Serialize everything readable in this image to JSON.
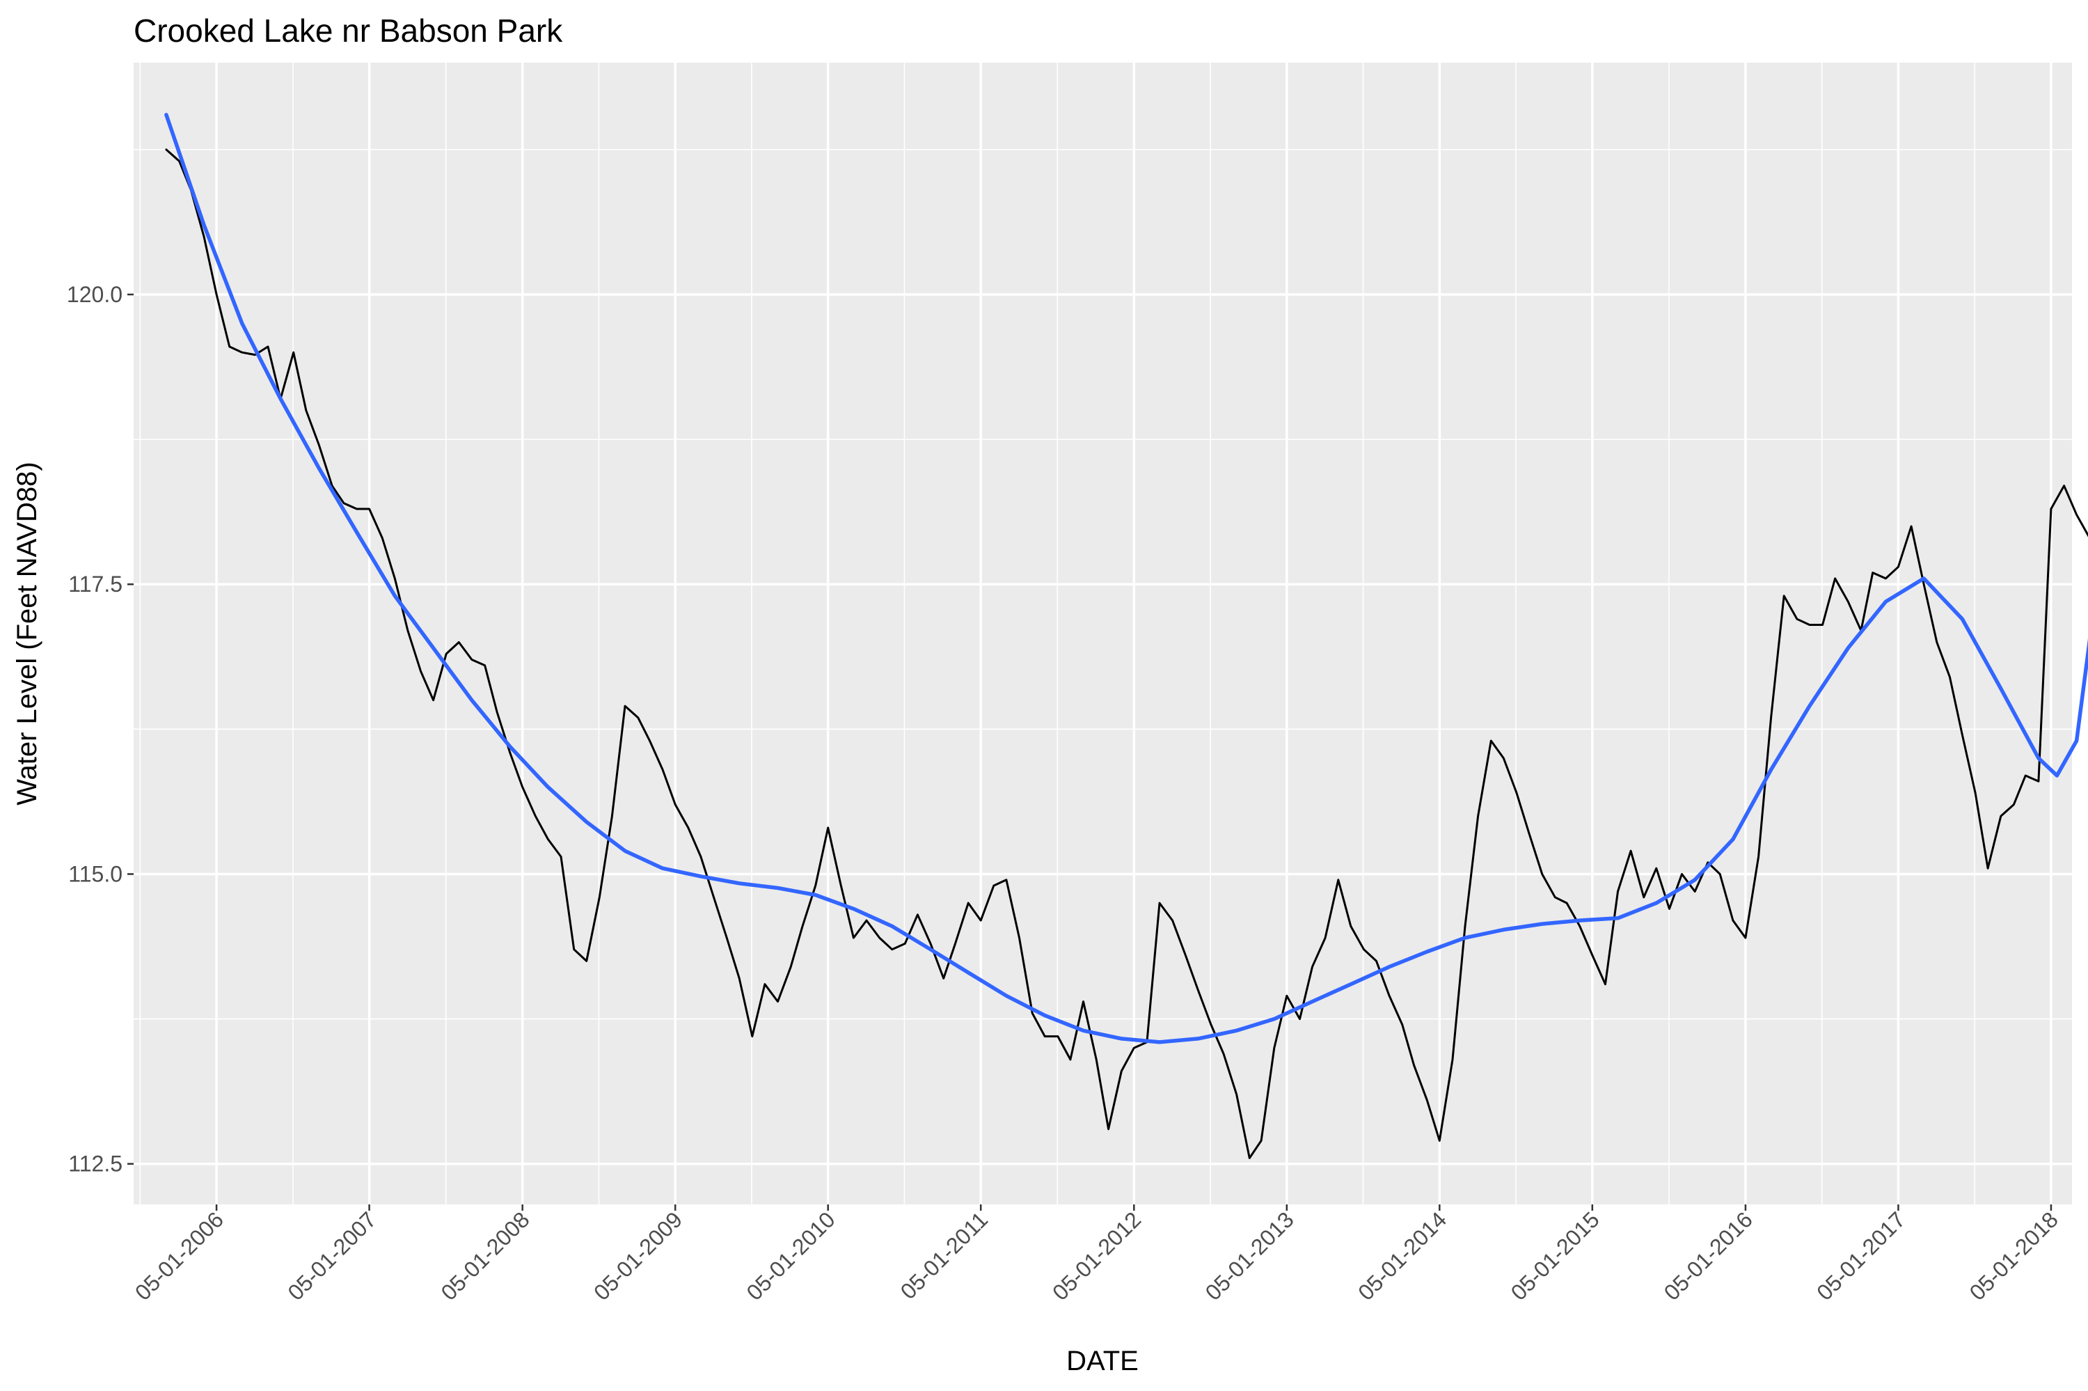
{
  "chart_data": {
    "type": "line",
    "title": "Crooked Lake nr Babson Park",
    "xlabel": "DATE",
    "ylabel": "Water Level (Feet NAVD88)",
    "x_tick_labels": [
      "05-01-2006",
      "05-01-2007",
      "05-01-2008",
      "05-01-2009",
      "05-01-2010",
      "05-01-2011",
      "05-01-2012",
      "05-01-2013",
      "05-01-2014",
      "05-01-2015",
      "05-01-2016",
      "05-01-2017",
      "05-01-2018"
    ],
    "x_ticks": [
      "2006-05-01",
      "2007-05-01",
      "2008-05-01",
      "2009-05-01",
      "2010-05-01",
      "2011-05-01",
      "2012-05-01",
      "2013-05-01",
      "2014-05-01",
      "2015-05-01",
      "2016-05-01",
      "2017-05-01",
      "2018-05-01"
    ],
    "y_tick_labels": [
      "112.5",
      "115.0",
      "117.5",
      "120.0"
    ],
    "y_ticks": [
      112.5,
      115.0,
      117.5,
      120.0
    ],
    "xlim": [
      "2005-10-15",
      "2018-06-20"
    ],
    "ylim": [
      112.15,
      122.0
    ],
    "grid": true,
    "background": "#ebebeb",
    "grid_color": "#ffffff",
    "series": [
      {
        "style": "observed",
        "color": "#000000",
        "points": [
          [
            "2006-01-01",
            121.25
          ],
          [
            "2006-02-01",
            121.15
          ],
          [
            "2006-03-01",
            120.9
          ],
          [
            "2006-04-01",
            120.5
          ],
          [
            "2006-05-01",
            120.0
          ],
          [
            "2006-06-01",
            119.55
          ],
          [
            "2006-07-01",
            119.5
          ],
          [
            "2006-08-01",
            119.48
          ],
          [
            "2006-09-01",
            119.55
          ],
          [
            "2006-10-01",
            119.1
          ],
          [
            "2006-11-01",
            119.5
          ],
          [
            "2006-12-01",
            119.0
          ],
          [
            "2007-01-01",
            118.7
          ],
          [
            "2007-02-01",
            118.35
          ],
          [
            "2007-03-01",
            118.2
          ],
          [
            "2007-04-01",
            118.15
          ],
          [
            "2007-05-01",
            118.15
          ],
          [
            "2007-06-01",
            117.9
          ],
          [
            "2007-07-01",
            117.55
          ],
          [
            "2007-08-01",
            117.1
          ],
          [
            "2007-09-01",
            116.75
          ],
          [
            "2007-10-01",
            116.5
          ],
          [
            "2007-11-01",
            116.9
          ],
          [
            "2007-12-01",
            117.0
          ],
          [
            "2008-01-01",
            116.85
          ],
          [
            "2008-02-01",
            116.8
          ],
          [
            "2008-03-01",
            116.4
          ],
          [
            "2008-04-01",
            116.05
          ],
          [
            "2008-05-01",
            115.75
          ],
          [
            "2008-06-01",
            115.5
          ],
          [
            "2008-07-01",
            115.3
          ],
          [
            "2008-08-01",
            115.15
          ],
          [
            "2008-09-01",
            114.35
          ],
          [
            "2008-10-01",
            114.25
          ],
          [
            "2008-11-01",
            114.8
          ],
          [
            "2008-12-01",
            115.5
          ],
          [
            "2009-01-01",
            116.45
          ],
          [
            "2009-02-01",
            116.35
          ],
          [
            "2009-03-01",
            116.15
          ],
          [
            "2009-04-01",
            115.9
          ],
          [
            "2009-05-01",
            115.6
          ],
          [
            "2009-06-01",
            115.4
          ],
          [
            "2009-07-01",
            115.15
          ],
          [
            "2009-08-01",
            114.8
          ],
          [
            "2009-09-01",
            114.45
          ],
          [
            "2009-10-01",
            114.1
          ],
          [
            "2009-11-01",
            113.6
          ],
          [
            "2009-12-01",
            114.05
          ],
          [
            "2010-01-01",
            113.9
          ],
          [
            "2010-02-01",
            114.2
          ],
          [
            "2010-03-01",
            114.55
          ],
          [
            "2010-04-01",
            114.9
          ],
          [
            "2010-05-01",
            115.4
          ],
          [
            "2010-06-01",
            114.9
          ],
          [
            "2010-07-01",
            114.45
          ],
          [
            "2010-08-01",
            114.6
          ],
          [
            "2010-09-01",
            114.45
          ],
          [
            "2010-10-01",
            114.35
          ],
          [
            "2010-11-01",
            114.4
          ],
          [
            "2010-12-01",
            114.65
          ],
          [
            "2011-01-01",
            114.4
          ],
          [
            "2011-02-01",
            114.1
          ],
          [
            "2011-03-01",
            114.4
          ],
          [
            "2011-04-01",
            114.75
          ],
          [
            "2011-05-01",
            114.6
          ],
          [
            "2011-06-01",
            114.9
          ],
          [
            "2011-07-01",
            114.95
          ],
          [
            "2011-08-01",
            114.45
          ],
          [
            "2011-09-01",
            113.8
          ],
          [
            "2011-10-01",
            113.6
          ],
          [
            "2011-11-01",
            113.6
          ],
          [
            "2011-12-01",
            113.4
          ],
          [
            "2012-01-01",
            113.9
          ],
          [
            "2012-02-01",
            113.4
          ],
          [
            "2012-03-01",
            112.8
          ],
          [
            "2012-04-01",
            113.3
          ],
          [
            "2012-05-01",
            113.5
          ],
          [
            "2012-06-01",
            113.55
          ],
          [
            "2012-07-01",
            114.75
          ],
          [
            "2012-08-01",
            114.6
          ],
          [
            "2012-09-01",
            114.3
          ],
          [
            "2012-10-01",
            114.0
          ],
          [
            "2012-11-01",
            113.7
          ],
          [
            "2012-12-01",
            113.45
          ],
          [
            "2013-01-01",
            113.1
          ],
          [
            "2013-02-01",
            112.55
          ],
          [
            "2013-03-01",
            112.7
          ],
          [
            "2013-04-01",
            113.5
          ],
          [
            "2013-05-01",
            113.95
          ],
          [
            "2013-06-01",
            113.75
          ],
          [
            "2013-07-01",
            114.2
          ],
          [
            "2013-08-01",
            114.45
          ],
          [
            "2013-09-01",
            114.95
          ],
          [
            "2013-10-01",
            114.55
          ],
          [
            "2013-11-01",
            114.35
          ],
          [
            "2013-12-01",
            114.25
          ],
          [
            "2014-01-01",
            113.95
          ],
          [
            "2014-02-01",
            113.7
          ],
          [
            "2014-03-01",
            113.35
          ],
          [
            "2014-04-01",
            113.05
          ],
          [
            "2014-05-01",
            112.7
          ],
          [
            "2014-06-01",
            113.4
          ],
          [
            "2014-07-01",
            114.55
          ],
          [
            "2014-08-01",
            115.5
          ],
          [
            "2014-09-01",
            116.15
          ],
          [
            "2014-10-01",
            116.0
          ],
          [
            "2014-11-01",
            115.7
          ],
          [
            "2014-12-01",
            115.35
          ],
          [
            "2015-01-01",
            115.0
          ],
          [
            "2015-02-01",
            114.8
          ],
          [
            "2015-03-01",
            114.75
          ],
          [
            "2015-04-01",
            114.55
          ],
          [
            "2015-05-01",
            114.3
          ],
          [
            "2015-06-01",
            114.05
          ],
          [
            "2015-07-01",
            114.85
          ],
          [
            "2015-08-01",
            115.2
          ],
          [
            "2015-09-01",
            114.8
          ],
          [
            "2015-10-01",
            115.05
          ],
          [
            "2015-11-01",
            114.7
          ],
          [
            "2015-12-01",
            115.0
          ],
          [
            "2016-01-01",
            114.85
          ],
          [
            "2016-02-01",
            115.1
          ],
          [
            "2016-03-01",
            115.0
          ],
          [
            "2016-04-01",
            114.6
          ],
          [
            "2016-05-01",
            114.45
          ],
          [
            "2016-06-01",
            115.15
          ],
          [
            "2016-07-01",
            116.35
          ],
          [
            "2016-08-01",
            117.4
          ],
          [
            "2016-09-01",
            117.2
          ],
          [
            "2016-10-01",
            117.15
          ],
          [
            "2016-11-01",
            117.15
          ],
          [
            "2016-12-01",
            117.55
          ],
          [
            "2017-01-01",
            117.35
          ],
          [
            "2017-02-01",
            117.1
          ],
          [
            "2017-03-01",
            117.6
          ],
          [
            "2017-04-01",
            117.55
          ],
          [
            "2017-05-01",
            117.65
          ],
          [
            "2017-06-01",
            118.0
          ],
          [
            "2017-07-01",
            117.5
          ],
          [
            "2017-08-01",
            117.0
          ],
          [
            "2017-09-01",
            116.7
          ],
          [
            "2017-10-01",
            116.2
          ],
          [
            "2017-11-01",
            115.7
          ],
          [
            "2017-12-01",
            115.05
          ],
          [
            "2018-01-01",
            115.5
          ],
          [
            "2018-02-01",
            115.6
          ],
          [
            "2018-03-01",
            115.85
          ],
          [
            "2018-04-01",
            115.8
          ],
          [
            "2018-05-01",
            118.15
          ],
          [
            "2018-06-01",
            118.35
          ],
          [
            "2018-07-01",
            118.1
          ],
          [
            "2018-08-01",
            117.9
          ],
          [
            "2018-09-01",
            117.75
          ]
        ]
      },
      {
        "style": "smoothed",
        "color": "#3366ff",
        "points": [
          [
            "2006-01-01",
            121.55
          ],
          [
            "2006-04-01",
            120.6
          ],
          [
            "2006-07-01",
            119.75
          ],
          [
            "2006-10-01",
            119.1
          ],
          [
            "2007-01-01",
            118.5
          ],
          [
            "2007-04-01",
            117.95
          ],
          [
            "2007-07-01",
            117.4
          ],
          [
            "2007-10-01",
            116.95
          ],
          [
            "2008-01-01",
            116.5
          ],
          [
            "2008-04-01",
            116.1
          ],
          [
            "2008-07-01",
            115.75
          ],
          [
            "2008-10-01",
            115.45
          ],
          [
            "2009-01-01",
            115.2
          ],
          [
            "2009-04-01",
            115.05
          ],
          [
            "2009-07-01",
            114.98
          ],
          [
            "2009-10-01",
            114.92
          ],
          [
            "2010-01-01",
            114.88
          ],
          [
            "2010-04-01",
            114.82
          ],
          [
            "2010-07-01",
            114.7
          ],
          [
            "2010-10-01",
            114.55
          ],
          [
            "2011-01-01",
            114.35
          ],
          [
            "2011-04-01",
            114.15
          ],
          [
            "2011-07-01",
            113.95
          ],
          [
            "2011-10-01",
            113.78
          ],
          [
            "2012-01-01",
            113.65
          ],
          [
            "2012-04-01",
            113.58
          ],
          [
            "2012-07-01",
            113.55
          ],
          [
            "2012-10-01",
            113.58
          ],
          [
            "2013-01-01",
            113.65
          ],
          [
            "2013-04-01",
            113.75
          ],
          [
            "2013-07-01",
            113.9
          ],
          [
            "2013-10-01",
            114.05
          ],
          [
            "2014-01-01",
            114.2
          ],
          [
            "2014-04-01",
            114.33
          ],
          [
            "2014-07-01",
            114.45
          ],
          [
            "2014-10-01",
            114.52
          ],
          [
            "2015-01-01",
            114.57
          ],
          [
            "2015-04-01",
            114.6
          ],
          [
            "2015-07-01",
            114.62
          ],
          [
            "2015-10-01",
            114.75
          ],
          [
            "2016-01-01",
            114.95
          ],
          [
            "2016-04-01",
            115.3
          ],
          [
            "2016-07-01",
            115.9
          ],
          [
            "2016-10-01",
            116.45
          ],
          [
            "2017-01-01",
            116.95
          ],
          [
            "2017-04-01",
            117.35
          ],
          [
            "2017-07-01",
            117.55
          ],
          [
            "2017-10-01",
            117.2
          ],
          [
            "2018-01-01",
            116.6
          ],
          [
            "2018-04-01",
            116.0
          ],
          [
            "2018-05-15",
            115.85
          ],
          [
            "2018-07-01",
            116.15
          ],
          [
            "2018-08-15",
            117.4
          ],
          [
            "2018-09-20",
            119.95
          ]
        ]
      }
    ]
  }
}
